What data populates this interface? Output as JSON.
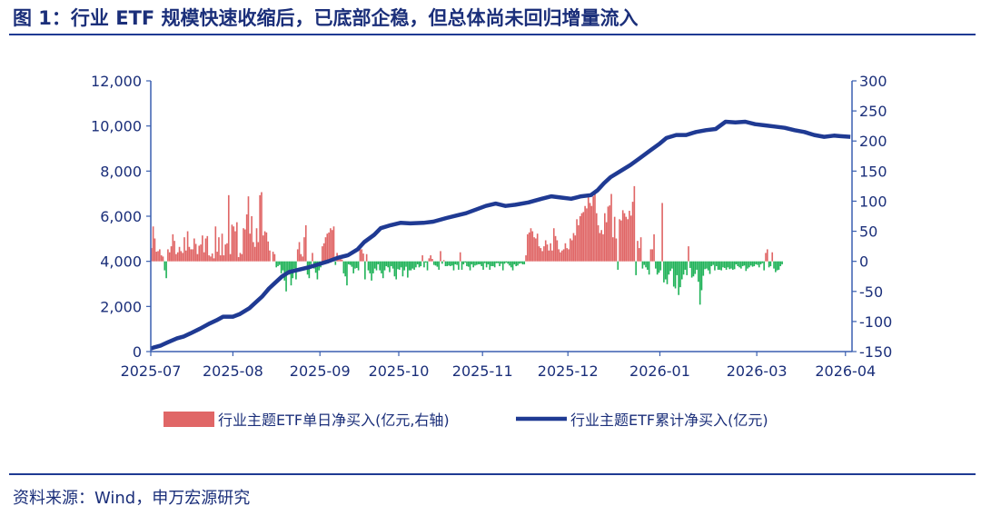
{
  "title": "图 1：行业 ETF 规模快速收缩后，已底部企稳，但总体尚未回归增量流入",
  "source": "资料来源：Wind，申万宏源研究",
  "colors": {
    "bar": "#e06666",
    "negbar": "#22b35a",
    "line": "#1f3a93",
    "text": "#1b2f7a"
  },
  "chart_data": {
    "type": "bar+line",
    "x_tick_labels": [
      "2025-07",
      "2025-08",
      "2025-09",
      "2025-10",
      "2025-11",
      "2025-12",
      "2026-01",
      "2026-03",
      "2026-04"
    ],
    "y_left": {
      "ticks": [
        "0",
        "2,000",
        "4,000",
        "6,000",
        "8,000",
        "10,000",
        "12,000"
      ],
      "range": [
        0,
        12000
      ]
    },
    "y_right": {
      "ticks": [
        "-150",
        "-100",
        "-50",
        "0",
        "50",
        "100",
        "150",
        "200",
        "250",
        "300"
      ],
      "range": [
        -150,
        300
      ]
    },
    "series": [
      {
        "name": "行业主题ETF单日净买入(亿元,右轴)",
        "type": "bar",
        "axis": "right",
        "values": [
          22,
          58,
          38,
          16,
          17,
          20,
          10,
          8,
          -15,
          -28,
          20,
          15,
          25,
          45,
          34,
          12,
          15,
          24,
          17,
          14,
          40,
          18,
          50,
          24,
          20,
          20,
          38,
          29,
          12,
          26,
          28,
          43,
          15,
          38,
          42,
          10,
          8,
          13,
          5,
          58,
          16,
          40,
          10,
          46,
          10,
          28,
          30,
          110,
          12,
          61,
          58,
          50,
          65,
          7,
          14,
          12,
          55,
          53,
          78,
          108,
          46,
          75,
          32,
          24,
          55,
          32,
          110,
          115,
          43,
          50,
          48,
          33,
          18,
          0,
          16,
          12,
          -10,
          -8,
          -6,
          -20,
          -15,
          -32,
          -50,
          -18,
          -22,
          -40,
          -28,
          -12,
          -30,
          20,
          32,
          12,
          8,
          40,
          60,
          -22,
          -28,
          -5,
          14,
          -12,
          -19,
          -30,
          -15,
          -10,
          25,
          30,
          40,
          46,
          48,
          55,
          52,
          58,
          -6,
          14,
          7,
          6,
          3,
          -20,
          -25,
          -40,
          -5,
          -6,
          -9,
          -20,
          -12,
          -11,
          -15,
          20,
          20,
          13,
          -30,
          12,
          -15,
          -20,
          -32,
          -20,
          -12,
          -15,
          -5,
          -15,
          -20,
          -28,
          -15,
          -8,
          -10,
          -18,
          -8,
          -12,
          -25,
          -30,
          -13,
          -14,
          -10,
          -25,
          -15,
          -9,
          -27,
          -15,
          -15,
          -12,
          -14,
          -10,
          -5,
          -10,
          -8,
          10,
          -10,
          -2,
          -15,
          5,
          10,
          4,
          -6,
          -7,
          -9,
          -14,
          17,
          -4,
          2,
          -8,
          -8,
          -7,
          -8,
          -7,
          -15,
          -5,
          -6,
          -14,
          15,
          -14,
          -5,
          -2,
          -8,
          -9,
          -15,
          -5,
          -10,
          -7,
          -6,
          -5,
          -5,
          -8,
          -14,
          -3,
          -10,
          -5,
          -14,
          -8,
          -8,
          -10,
          -3,
          -3,
          -8,
          -4,
          -15,
          -4,
          -2,
          -4,
          -7,
          -10,
          -15,
          -5,
          -8,
          -7,
          -4,
          -3,
          -5,
          -5,
          10,
          45,
          48,
          55,
          50,
          40,
          38,
          46,
          25,
          22,
          17,
          25,
          35,
          28,
          18,
          30,
          18,
          55,
          42,
          35,
          20,
          15,
          18,
          20,
          30,
          22,
          20,
          38,
          35,
          47,
          43,
          70,
          60,
          75,
          80,
          82,
          92,
          88,
          110,
          97,
          92,
          108,
          115,
          80,
          60,
          47,
          52,
          45,
          80,
          65,
          91,
          93,
          112,
          40,
          74,
          38,
          -14,
          70,
          68,
          85,
          80,
          74,
          70,
          84,
          76,
          99,
          125,
          -23,
          34,
          22,
          40,
          -12,
          -6,
          -10,
          -14,
          -22,
          20,
          20,
          45,
          -12,
          -22,
          -19,
          -15,
          97,
          -35,
          -30,
          -38,
          -22,
          -16,
          -12,
          -42,
          -45,
          -23,
          -56,
          -43,
          -30,
          -22,
          -14,
          -23,
          25,
          -11,
          -27,
          -25,
          -21,
          -14,
          -34,
          -72,
          -48,
          -24,
          -13,
          -12,
          -15,
          -21,
          -8,
          -6,
          -15,
          -8,
          -14,
          -14,
          -15,
          -10,
          -11,
          -14,
          -10,
          -13,
          -12,
          -14,
          -13,
          -5,
          -8,
          -10,
          -12,
          -8,
          -7,
          -16,
          -12,
          -10,
          -7,
          -9,
          -8,
          -5,
          -6,
          -10,
          -5,
          -3,
          -15,
          14,
          20,
          -10,
          -8,
          15,
          -12,
          -18,
          -15,
          -14,
          -8,
          -5
        ]
      },
      {
        "name": "行业主题ETF累计净买入(亿元)",
        "type": "line",
        "axis": "right",
        "points": [
          [
            0,
            -145
          ],
          [
            2,
            -143
          ],
          [
            6,
            -140
          ],
          [
            10,
            -135
          ],
          [
            16,
            -128
          ],
          [
            20,
            -125
          ],
          [
            24,
            -120
          ],
          [
            30,
            -112
          ],
          [
            36,
            -103
          ],
          [
            40,
            -98
          ],
          [
            44,
            -92
          ],
          [
            50,
            -92
          ],
          [
            54,
            -88
          ],
          [
            60,
            -78
          ],
          [
            64,
            -68
          ],
          [
            68,
            -58
          ],
          [
            72,
            -45
          ],
          [
            76,
            -35
          ],
          [
            80,
            -25
          ],
          [
            84,
            -18
          ],
          [
            90,
            -14
          ],
          [
            96,
            -10
          ],
          [
            102,
            -5
          ],
          [
            108,
            0
          ],
          [
            114,
            6
          ],
          [
            120,
            10
          ],
          [
            126,
            20
          ],
          [
            130,
            32
          ],
          [
            136,
            44
          ],
          [
            140,
            55
          ],
          [
            146,
            60
          ],
          [
            152,
            64
          ],
          [
            158,
            63
          ],
          [
            166,
            64
          ],
          [
            172,
            66
          ],
          [
            180,
            72
          ],
          [
            186,
            76
          ],
          [
            192,
            80
          ],
          [
            198,
            86
          ],
          [
            204,
            92
          ],
          [
            210,
            96
          ],
          [
            216,
            92
          ],
          [
            222,
            94
          ],
          [
            230,
            98
          ],
          [
            238,
            104
          ],
          [
            244,
            108
          ],
          [
            250,
            106
          ],
          [
            256,
            104
          ],
          [
            262,
            108
          ],
          [
            268,
            110
          ],
          [
            272,
            118
          ],
          [
            276,
            130
          ],
          [
            280,
            140
          ],
          [
            286,
            150
          ],
          [
            292,
            160
          ],
          [
            298,
            172
          ],
          [
            304,
            184
          ],
          [
            310,
            196
          ],
          [
            314,
            205
          ],
          [
            320,
            210
          ],
          [
            326,
            210
          ],
          [
            332,
            215
          ],
          [
            338,
            218
          ],
          [
            344,
            220
          ],
          [
            350,
            232
          ],
          [
            356,
            231
          ],
          [
            362,
            232
          ],
          [
            368,
            228
          ],
          [
            374,
            226
          ],
          [
            380,
            224
          ],
          [
            386,
            222
          ],
          [
            392,
            218
          ],
          [
            398,
            215
          ],
          [
            404,
            210
          ],
          [
            410,
            207
          ],
          [
            416,
            209
          ],
          [
            420,
            208
          ],
          [
            426,
            207
          ]
        ]
      }
    ],
    "n_days": 427,
    "x_tick_positions": [
      0,
      50,
      103,
      151,
      202,
      254,
      310,
      369,
      423
    ]
  }
}
